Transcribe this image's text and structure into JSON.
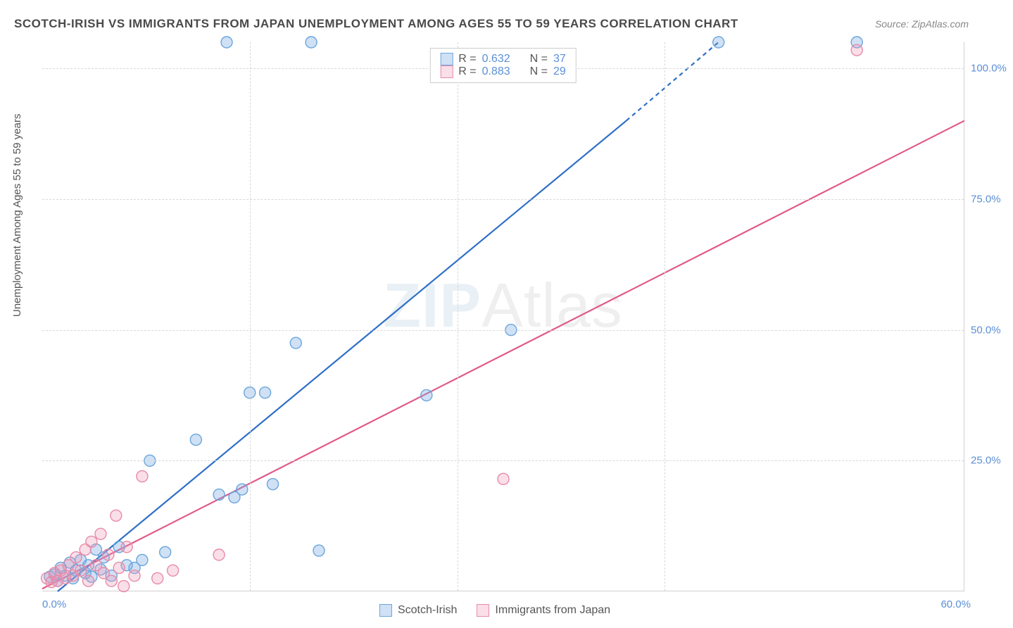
{
  "title": "SCOTCH-IRISH VS IMMIGRANTS FROM JAPAN UNEMPLOYMENT AMONG AGES 55 TO 59 YEARS CORRELATION CHART",
  "source": "Source: ZipAtlas.com",
  "y_axis_label": "Unemployment Among Ages 55 to 59 years",
  "watermark": {
    "bold": "ZIP",
    "light": "Atlas"
  },
  "chart": {
    "type": "scatter",
    "xlim": [
      0,
      60
    ],
    "ylim": [
      0,
      105
    ],
    "x_ticks": [
      {
        "v": 0,
        "l": "0.0%"
      },
      {
        "v": 60,
        "l": "60.0%"
      }
    ],
    "y_ticks": [
      {
        "v": 25,
        "l": "25.0%"
      },
      {
        "v": 50,
        "l": "50.0%"
      },
      {
        "v": 75,
        "l": "75.0%"
      },
      {
        "v": 100,
        "l": "100.0%"
      }
    ],
    "grid_h": [
      25,
      50,
      75,
      100
    ],
    "grid_v": [
      13.5,
      27,
      40.5
    ],
    "background_color": "#ffffff",
    "grid_color": "#d8d8d8",
    "marker_radius": 8,
    "marker_stroke_width": 1.4,
    "line_width": 2.2,
    "series": [
      {
        "name": "Scotch-Irish",
        "color_fill": "rgba(120,170,225,0.35)",
        "color_stroke": "#6aa6dd",
        "line_color": "#2e6fc7",
        "r": 0.632,
        "n": 37,
        "points": [
          [
            0.5,
            2.8
          ],
          [
            0.8,
            3.2
          ],
          [
            1.0,
            2.0
          ],
          [
            1.2,
            4.5
          ],
          [
            1.5,
            3.0
          ],
          [
            1.8,
            5.5
          ],
          [
            2.0,
            2.5
          ],
          [
            2.2,
            4.0
          ],
          [
            2.5,
            6.0
          ],
          [
            2.8,
            3.5
          ],
          [
            3.0,
            5.0
          ],
          [
            3.2,
            2.8
          ],
          [
            3.5,
            8.0
          ],
          [
            3.8,
            4.2
          ],
          [
            4.0,
            6.5
          ],
          [
            4.5,
            3.0
          ],
          [
            5.0,
            8.5
          ],
          [
            5.5,
            5.0
          ],
          [
            6.0,
            4.5
          ],
          [
            6.5,
            6.0
          ],
          [
            7.0,
            25.0
          ],
          [
            8.0,
            7.5
          ],
          [
            10.0,
            29.0
          ],
          [
            11.5,
            18.5
          ],
          [
            12.5,
            18.0
          ],
          [
            13.0,
            19.5
          ],
          [
            13.5,
            38.0
          ],
          [
            14.5,
            38.0
          ],
          [
            15.0,
            20.5
          ],
          [
            16.5,
            47.5
          ],
          [
            18.0,
            7.8
          ],
          [
            25.0,
            37.5
          ],
          [
            30.5,
            50.0
          ],
          [
            12.0,
            105.0
          ],
          [
            17.5,
            105.0
          ],
          [
            44.0,
            105.0
          ],
          [
            53.0,
            105.0
          ]
        ],
        "trend": {
          "x1": 1.0,
          "y1": 0.0,
          "x2_solid": 38.0,
          "y2_solid": 90.0,
          "x2_dash": 44.0,
          "y2_dash": 105.0
        }
      },
      {
        "name": "Immigrants from Japan",
        "color_fill": "rgba(240,150,180,0.30)",
        "color_stroke": "#e88ba8",
        "line_color": "#e15a8a",
        "r": 0.883,
        "n": 29,
        "points": [
          [
            0.3,
            2.5
          ],
          [
            0.6,
            1.8
          ],
          [
            0.8,
            3.5
          ],
          [
            1.0,
            2.0
          ],
          [
            1.2,
            4.0
          ],
          [
            1.5,
            2.5
          ],
          [
            1.7,
            5.0
          ],
          [
            2.0,
            3.0
          ],
          [
            2.2,
            6.5
          ],
          [
            2.5,
            4.0
          ],
          [
            2.8,
            8.0
          ],
          [
            3.0,
            2.0
          ],
          [
            3.2,
            9.5
          ],
          [
            3.5,
            5.0
          ],
          [
            3.8,
            11.0
          ],
          [
            4.0,
            3.5
          ],
          [
            4.3,
            7.0
          ],
          [
            4.5,
            2.0
          ],
          [
            4.8,
            14.5
          ],
          [
            5.0,
            4.5
          ],
          [
            5.3,
            1.0
          ],
          [
            5.5,
            8.5
          ],
          [
            6.0,
            3.0
          ],
          [
            6.5,
            22.0
          ],
          [
            7.5,
            2.5
          ],
          [
            8.5,
            4.0
          ],
          [
            11.5,
            7.0
          ],
          [
            30.0,
            21.5
          ],
          [
            53.0,
            103.5
          ]
        ],
        "trend": {
          "x1": 0.0,
          "y1": 0.5,
          "x2_solid": 60.0,
          "y2_solid": 90.0,
          "x2_dash": 60.0,
          "y2_dash": 90.0
        }
      }
    ]
  },
  "legend_top": {
    "rows": [
      {
        "sw_fill": "rgba(120,170,225,0.35)",
        "sw_stroke": "#6aa6dd",
        "r_label": "R =",
        "r": "0.632",
        "n_label": "N =",
        "n": "37"
      },
      {
        "sw_fill": "rgba(240,150,180,0.30)",
        "sw_stroke": "#e88ba8",
        "r_label": "R =",
        "r": "0.883",
        "n_label": "N =",
        "n": "29"
      }
    ]
  },
  "legend_bottom": {
    "items": [
      {
        "sw_fill": "rgba(120,170,225,0.35)",
        "sw_stroke": "#6aa6dd",
        "label": "Scotch-Irish"
      },
      {
        "sw_fill": "rgba(240,150,180,0.30)",
        "sw_stroke": "#e88ba8",
        "label": "Immigrants from Japan"
      }
    ]
  }
}
